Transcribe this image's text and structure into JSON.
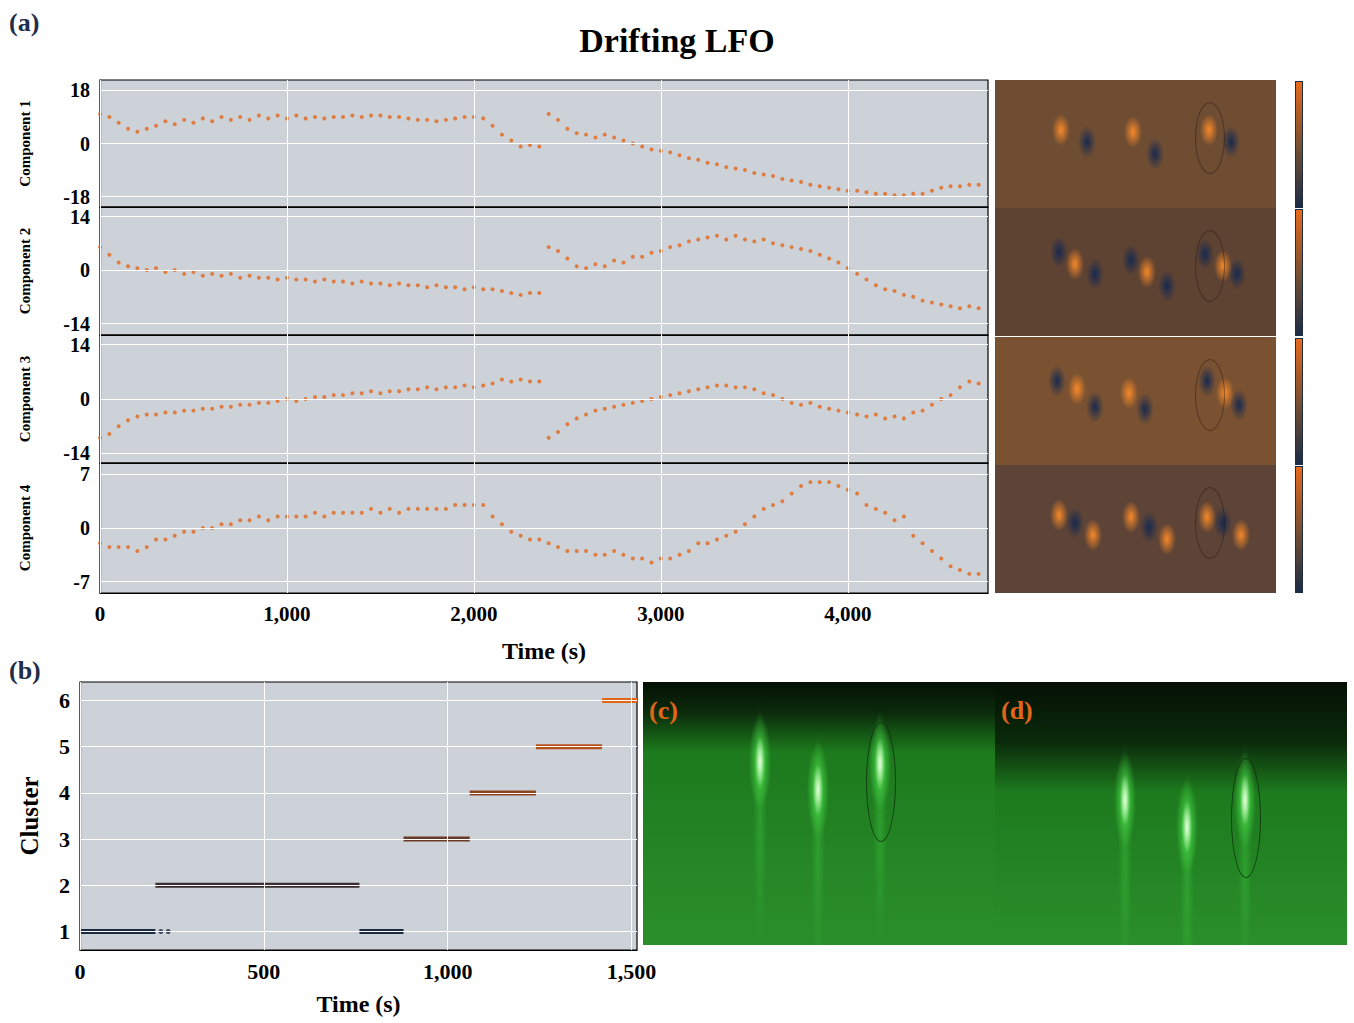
{
  "chart_data": [
    {
      "type": "scatter",
      "panel": "(a)",
      "title": "Drifting LFO",
      "xlabel": "Time (s)",
      "color": "#e2661a",
      "grid": true,
      "xlim": [
        0,
        4750
      ],
      "xticks": [
        0,
        1000,
        2000,
        3000,
        4000
      ],
      "x": [
        0,
        50,
        100,
        150,
        200,
        250,
        300,
        350,
        400,
        450,
        500,
        550,
        600,
        650,
        700,
        750,
        800,
        850,
        900,
        950,
        1000,
        1050,
        1100,
        1150,
        1200,
        1250,
        1300,
        1350,
        1400,
        1450,
        1500,
        1550,
        1600,
        1650,
        1700,
        1750,
        1800,
        1850,
        1900,
        1950,
        2000,
        2050,
        2100,
        2150,
        2200,
        2250,
        2300,
        2350,
        2400,
        2450,
        2500,
        2550,
        2600,
        2650,
        2700,
        2750,
        2800,
        2850,
        2900,
        2950,
        3000,
        3050,
        3100,
        3150,
        3200,
        3250,
        3300,
        3350,
        3400,
        3450,
        3500,
        3550,
        3600,
        3650,
        3700,
        3750,
        3800,
        3850,
        3900,
        3950,
        4000,
        4050,
        4100,
        4150,
        4200,
        4250,
        4300,
        4350,
        4400,
        4450,
        4500,
        4550,
        4600,
        4650,
        4700
      ],
      "subplots": [
        {
          "ylabel": "Component 1",
          "ylim": [
            -21.5,
            21.5
          ],
          "yticks": [
            -18,
            0,
            18
          ],
          "values": [
            10,
            9,
            7,
            5,
            4,
            5,
            6,
            7.5,
            6.5,
            8,
            7,
            8.5,
            7.5,
            9,
            8,
            9,
            8,
            9.5,
            8.5,
            9.5,
            8.5,
            9.5,
            8.5,
            9,
            8.5,
            9,
            9,
            9.5,
            9,
            9.5,
            9.5,
            9,
            9,
            8.5,
            8,
            8,
            7.5,
            8,
            8.5,
            9,
            9,
            8.5,
            6,
            3,
            1,
            -1,
            -0.5,
            -1,
            10,
            8,
            5,
            3.5,
            3,
            2,
            3,
            2,
            1,
            0,
            -1,
            -2,
            -2.5,
            -3,
            -4,
            -5,
            -5.5,
            -6.5,
            -7,
            -8,
            -8.5,
            -9,
            -10,
            -10.5,
            -11,
            -12,
            -12.5,
            -13,
            -14,
            -14.5,
            -15,
            -15.5,
            -16,
            -16,
            -16.5,
            -17,
            -17,
            -17.5,
            -17.5,
            -17,
            -17,
            -16,
            -15,
            -14.5,
            -14.5,
            -14,
            -14
          ]
        },
        {
          "ylabel": "Component 2",
          "ylim": [
            -17,
            16.5
          ],
          "yticks": [
            -14,
            0,
            14
          ],
          "values": [
            6,
            4,
            2,
            1,
            0.5,
            0,
            0.5,
            -0.5,
            0,
            -1,
            -0.5,
            -1.5,
            -1,
            -1.5,
            -1,
            -2,
            -1.5,
            -2,
            -2,
            -2.5,
            -2,
            -2.5,
            -2.5,
            -3,
            -2.5,
            -3,
            -3,
            -3.5,
            -3,
            -3.5,
            -3.5,
            -4,
            -3.5,
            -4,
            -4,
            -4.5,
            -4,
            -4.5,
            -4.5,
            -5,
            -4.5,
            -5,
            -5,
            -5.5,
            -6,
            -6.5,
            -6,
            -6,
            6,
            5,
            3,
            1,
            0.5,
            1.5,
            1,
            2.5,
            2,
            3.5,
            3.5,
            4.5,
            5,
            6,
            6.5,
            7.5,
            8,
            8.5,
            9,
            8,
            9,
            8,
            7.5,
            8,
            7,
            6.5,
            6,
            5.5,
            5,
            4,
            3,
            2,
            0.5,
            -1,
            -2.5,
            -4,
            -5,
            -5.5,
            -6.5,
            -7,
            -8,
            -8.5,
            -9,
            -9.5,
            -10,
            -9.5,
            -10
          ]
        },
        {
          "ylabel": "Component 3",
          "ylim": [
            -16.5,
            16.5
          ],
          "yticks": [
            -14,
            0,
            14
          ],
          "values": [
            -10,
            -9,
            -7,
            -5.5,
            -4.5,
            -4,
            -4,
            -3.5,
            -3.5,
            -3,
            -3,
            -2.5,
            -2.5,
            -2,
            -2,
            -1.5,
            -1.5,
            -1,
            -1,
            -0.5,
            0,
            -0.5,
            0,
            0.5,
            0.5,
            1,
            1,
            1.5,
            1.5,
            2,
            1.5,
            2,
            2,
            2.5,
            2.5,
            3,
            2.5,
            3,
            3,
            3.5,
            3,
            3.5,
            4,
            5,
            4.5,
            5,
            4.5,
            4.5,
            -10,
            -8.5,
            -6.5,
            -5,
            -4,
            -3,
            -2.5,
            -2,
            -1.5,
            -1,
            -0.5,
            0,
            0.5,
            1,
            1.5,
            2,
            2.5,
            3,
            3.5,
            3.5,
            3,
            3,
            2.5,
            1.5,
            1,
            0,
            -1,
            -1.5,
            -1,
            -2,
            -2.5,
            -3,
            -3.5,
            -4,
            -4.5,
            -4,
            -5,
            -4.5,
            -5,
            -3.5,
            -3,
            -1.5,
            0,
            1,
            3,
            4.5,
            4
          ]
        },
        {
          "ylabel": "Component 4",
          "ylim": [
            -8.5,
            8.5
          ],
          "yticks": [
            -7,
            0,
            7
          ],
          "values": [
            -2,
            -2.5,
            -2.5,
            -2.5,
            -3,
            -2.5,
            -1.5,
            -1.5,
            -1,
            -0.5,
            -0.5,
            0,
            0,
            0.5,
            0.5,
            1,
            1,
            1.5,
            1,
            1.5,
            1.5,
            1.5,
            1.5,
            2,
            1.5,
            2,
            2,
            2,
            2,
            2.5,
            2,
            2.5,
            2,
            2.5,
            2.5,
            2.5,
            2.5,
            2.5,
            3,
            3,
            3,
            3,
            1.5,
            0.5,
            -0.5,
            -1,
            -1.5,
            -1.5,
            -2,
            -2.5,
            -3,
            -3,
            -3,
            -3.5,
            -3.5,
            -3,
            -3.5,
            -4,
            -4,
            -4.5,
            -4,
            -4,
            -3.5,
            -3,
            -2,
            -2,
            -1.5,
            -1,
            -0.5,
            0.5,
            1.5,
            2.5,
            3,
            3.5,
            4.5,
            5.5,
            6,
            6,
            6,
            5.5,
            5,
            4.5,
            3,
            2.5,
            2,
            1,
            1.5,
            -1,
            -2,
            -3,
            -4,
            -5,
            -5.5,
            -6,
            -6
          ]
        }
      ]
    },
    {
      "type": "line",
      "panel": "(b)",
      "xlabel": "Time (s)",
      "ylabel": "Cluster",
      "grid": true,
      "xlim": [
        0,
        1515
      ],
      "xticks": [
        0,
        500,
        1000,
        1500
      ],
      "ylim": [
        0.6,
        6.4
      ],
      "yticks": [
        1,
        2,
        3,
        4,
        5,
        6
      ],
      "series": [
        {
          "cluster": 1,
          "color": "#1c2b45",
          "segments": [
            [
              0,
              205
            ],
            [
              760,
              880
            ]
          ],
          "points": [
            220,
            240
          ]
        },
        {
          "cluster": 2,
          "color": "#3b2c2e",
          "segments": [
            [
              205,
              760
            ]
          ]
        },
        {
          "cluster": 3,
          "color": "#6a3a26",
          "segments": [
            [
              880,
              1060
            ]
          ]
        },
        {
          "cluster": 4,
          "color": "#8e4420",
          "segments": [
            [
              1060,
              1240
            ]
          ]
        },
        {
          "cluster": 5,
          "color": "#b8521b",
          "segments": [
            [
              1240,
              1420
            ]
          ]
        },
        {
          "cluster": 6,
          "color": "#e0661a",
          "segments": [
            [
              1420,
              1515
            ]
          ]
        }
      ]
    }
  ],
  "images": [
    {
      "label": "(c)"
    },
    {
      "label": "(d)"
    }
  ]
}
